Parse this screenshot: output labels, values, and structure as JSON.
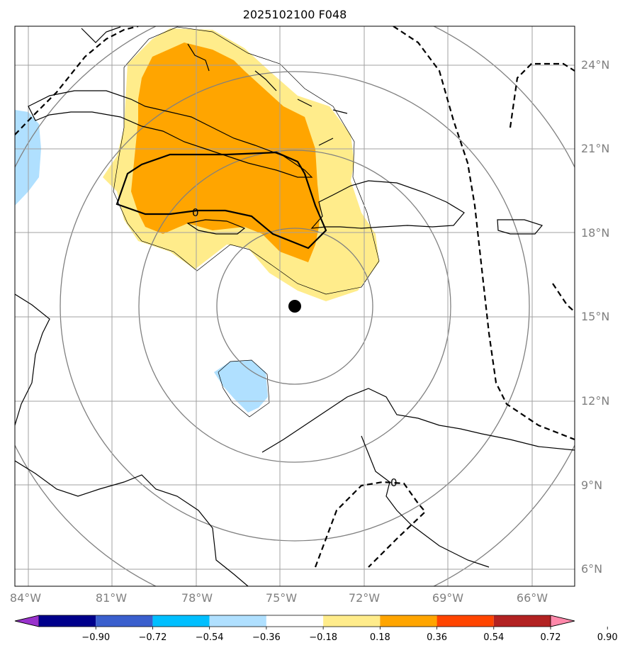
{
  "title": "2025102100 F048",
  "lat_labels": [
    "24°N",
    "21°N",
    "18°N",
    "15°N",
    "12°N",
    "9°N",
    "6°N"
  ],
  "lon_labels": [
    "84°W",
    "81°W",
    "78°W",
    "75°W",
    "72°W",
    "69°W",
    "66°W"
  ],
  "contour_labels": [
    "0",
    "0"
  ],
  "colorbar": {
    "tick_labels": [
      "−0.90",
      "−0.72",
      "−0.54",
      "−0.36",
      "−0.18",
      "0.18",
      "0.36",
      "0.54",
      "0.72",
      "0.90"
    ],
    "colors": [
      "#9932cc",
      "#00008b",
      "#3a5fcd",
      "#00bfff",
      "#b0e0ff",
      "#ffffff",
      "#ffec8b",
      "#ffa500",
      "#ff4500",
      "#b22222",
      "#ff88aa"
    ]
  },
  "fill_colors": {
    "light_yellow": "#ffec8b",
    "orange": "#ffa500",
    "light_blue": "#b0e0ff"
  },
  "storm_center": {
    "lat": 15.4,
    "lon": -74.4
  }
}
